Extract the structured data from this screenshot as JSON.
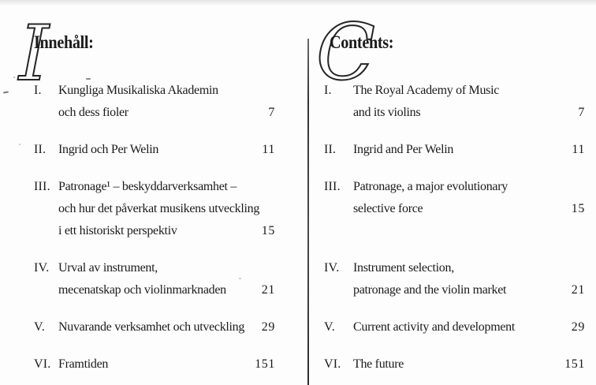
{
  "colors": {
    "ink": "#1b1b1b",
    "paper": "#fdfdfd",
    "divider": "#3a3a3a"
  },
  "left": {
    "heading": "Innehåll:",
    "drop_cap": "I",
    "entries": [
      {
        "numeral": "I.",
        "lines": [
          "Kungliga Musikaliska Akademin",
          "och dess fioler"
        ],
        "page": "7"
      },
      {
        "numeral": "II.",
        "lines": [
          "Ingrid och Per Welin"
        ],
        "page": "11"
      },
      {
        "numeral": "III.",
        "lines": [
          "Patronage¹ – beskyddarverksamhet –",
          "och hur det påverkat musikens utveckling",
          "i ett historiskt perspektiv"
        ],
        "page": "15"
      },
      {
        "numeral": "IV.",
        "lines": [
          "Urval av instrument,",
          "mecenatskap och violinmarknaden"
        ],
        "page": "21"
      },
      {
        "numeral": "V.",
        "lines": [
          "Nuvarande verksamhet och utveckling"
        ],
        "page": "29"
      },
      {
        "numeral": "VI.",
        "lines": [
          "Framtiden"
        ],
        "page": "151"
      }
    ]
  },
  "right": {
    "heading": "Contents:",
    "drop_cap": "C",
    "entries": [
      {
        "numeral": "I.",
        "lines": [
          "The Royal Academy of Music",
          "and its violins"
        ],
        "page": "7"
      },
      {
        "numeral": "II.",
        "lines": [
          "Ingrid and Per Welin"
        ],
        "page": "11"
      },
      {
        "numeral": "III.",
        "lines": [
          "Patronage, a major evolutionary",
          "selective force"
        ],
        "page": "15"
      },
      {
        "numeral": "IV.",
        "lines": [
          "Instrument selection,",
          "patronage and the violin market"
        ],
        "page": "21"
      },
      {
        "numeral": "V.",
        "lines": [
          "Current activity and development"
        ],
        "page": "29"
      },
      {
        "numeral": "VI.",
        "lines": [
          "The future"
        ],
        "page": "151"
      }
    ]
  }
}
